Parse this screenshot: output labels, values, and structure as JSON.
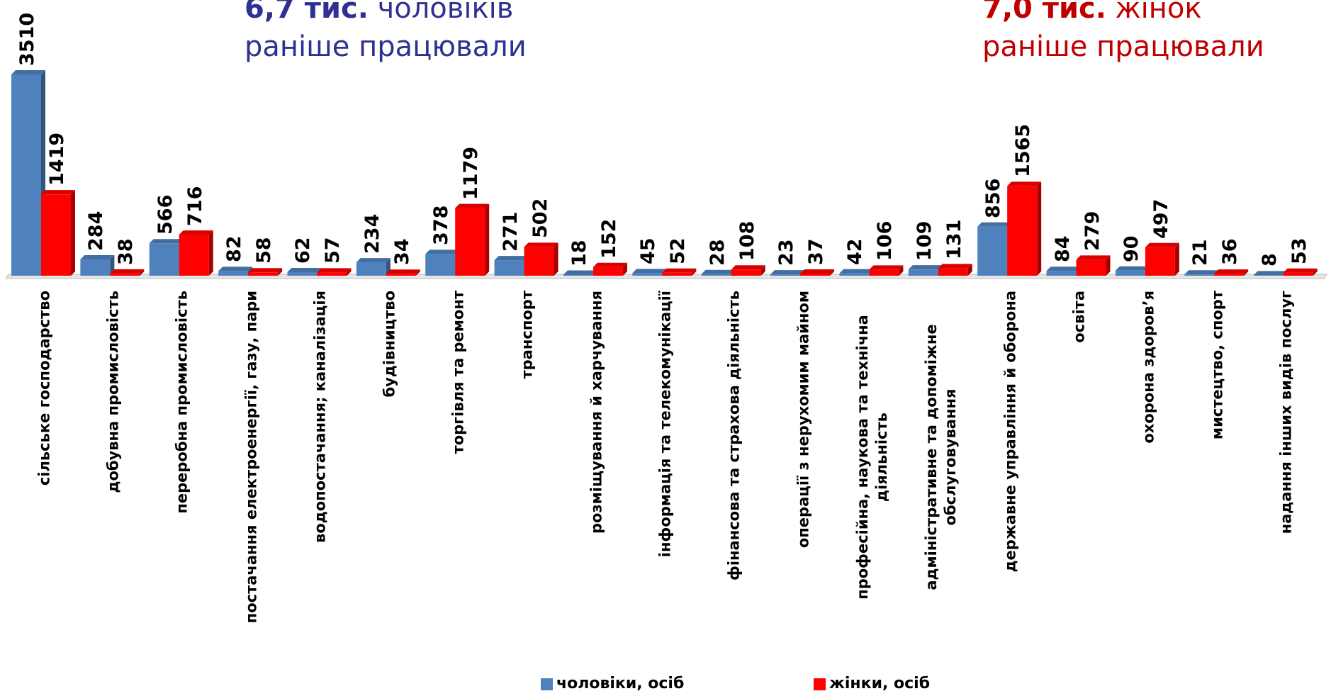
{
  "chart_data": {
    "type": "bar",
    "annotations": [
      {
        "bold": "6,7 тис.",
        "text": "чоловіків раніше працювали",
        "color": "#2e3192"
      },
      {
        "bold": "7,0 тис.",
        "text": "жінок раніше працювали",
        "color": "#c00000"
      }
    ],
    "categories": [
      "сільське господарство",
      "добувна промисловість",
      "переробна промисловість",
      "постачання електроенергії, газу, пари",
      "водопостачання; каналізація",
      "будівництво",
      "торгівля та ремонт",
      "транспорт",
      "розміщування й харчування",
      "інформація та телекомунікації",
      "фінансова та страхова діяльність",
      "операції з нерухомим майном",
      "професійна, наукова та технічна діяльність",
      "адміністративне та допоміжне обслуговування",
      "державне управління й оборона",
      "освіта",
      "охорона здоров’я",
      "мистецтво, спорт",
      "надання інших видів послуг"
    ],
    "series": [
      {
        "name": "чоловіки, осіб",
        "color": "#4f81bd",
        "values": [
          3510,
          284,
          566,
          82,
          62,
          234,
          378,
          271,
          18,
          45,
          28,
          23,
          42,
          109,
          856,
          84,
          90,
          21,
          8
        ]
      },
      {
        "name": "жінки, осіб",
        "color": "#ff0000",
        "values": [
          1419,
          38,
          716,
          58,
          57,
          34,
          1179,
          502,
          152,
          52,
          108,
          37,
          106,
          131,
          1565,
          279,
          497,
          36,
          53
        ]
      }
    ]
  }
}
